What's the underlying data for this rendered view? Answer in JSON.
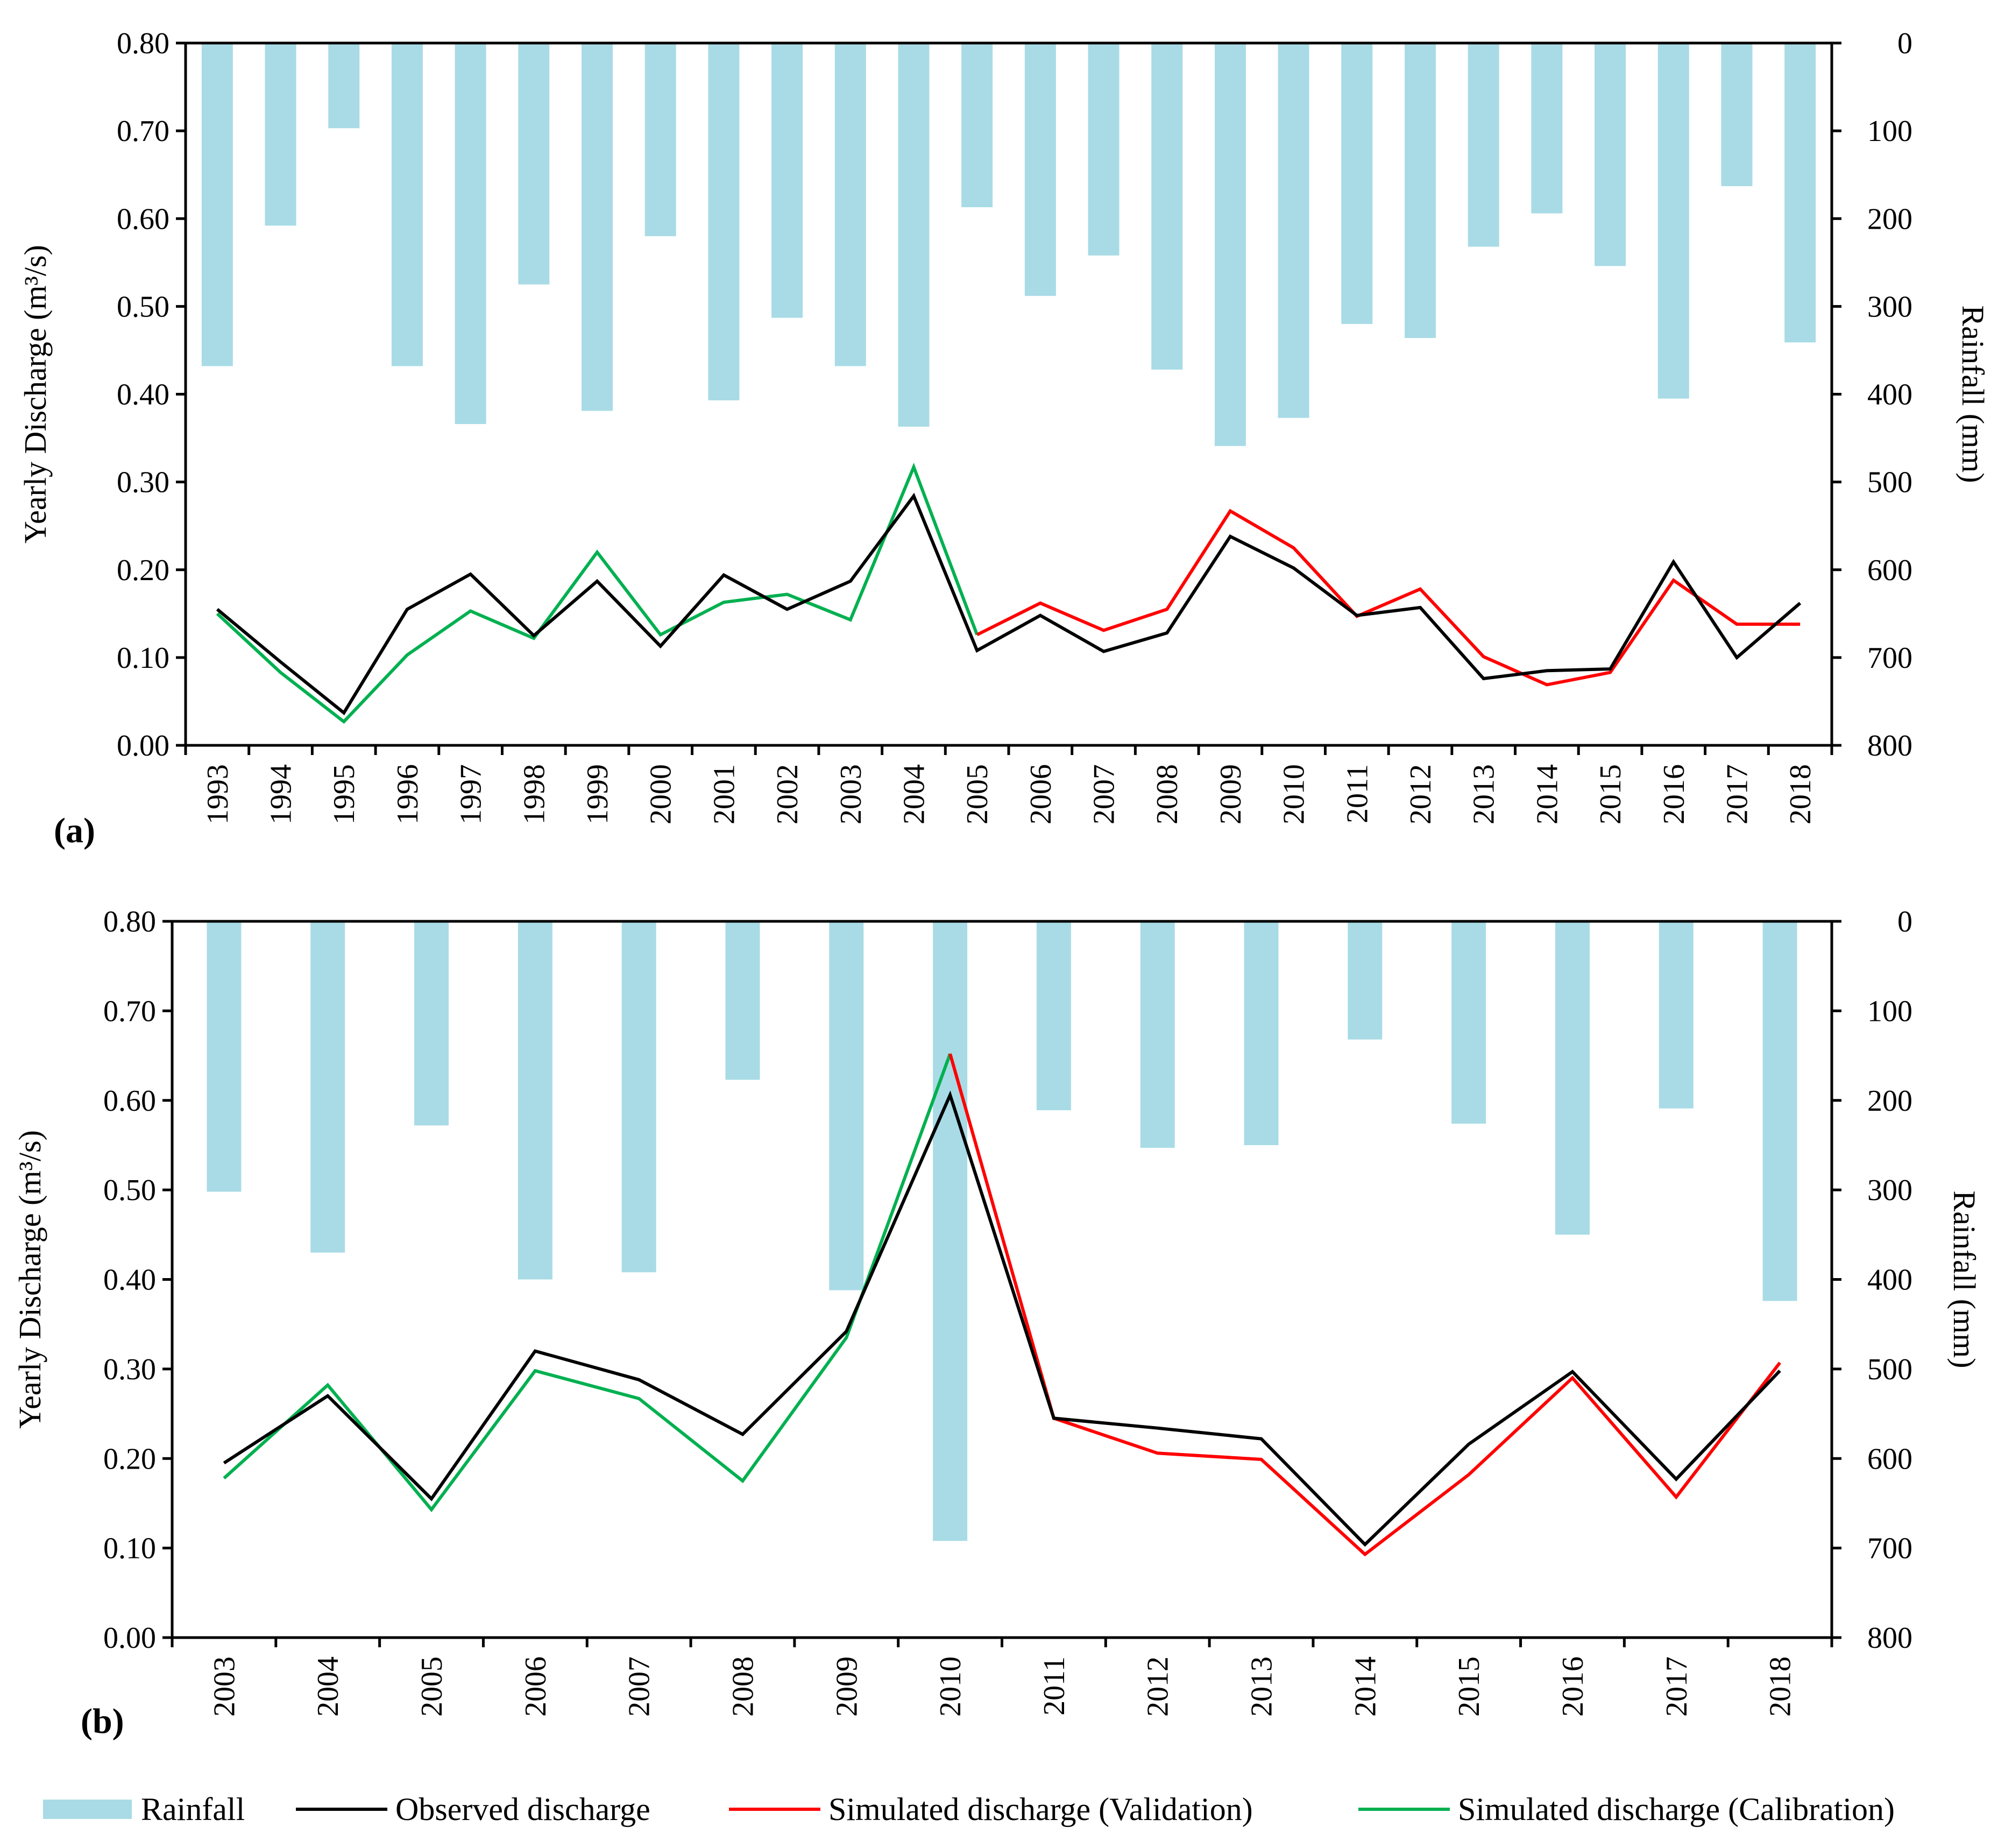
{
  "colors": {
    "rainfall": "#a8dbe6",
    "observed": "#000000",
    "validation": "#ff0000",
    "calibration": "#00b050"
  },
  "legend": {
    "rainfall": "Rainfall",
    "observed": "Observed discharge",
    "validation": "Simulated discharge (Validation)",
    "calibration": "Simulated discharge (Calibration)"
  },
  "chart_data": [
    {
      "type": "bar+line",
      "panel_label": "(a)",
      "ylabel_left": "Yearly Discharge (m³/s)",
      "ylabel_right": "Rainfall (mm)",
      "ylim_left": [
        0,
        0.8
      ],
      "yticks_left": [
        "0.00",
        "0.10",
        "0.20",
        "0.30",
        "0.40",
        "0.50",
        "0.60",
        "0.70",
        "0.80"
      ],
      "ylim_right_inverted": [
        0,
        800
      ],
      "yticks_right": [
        "0",
        "100",
        "200",
        "300",
        "400",
        "500",
        "600",
        "700",
        "800"
      ],
      "categories": [
        "1993",
        "1994",
        "1995",
        "1996",
        "1997",
        "1998",
        "1999",
        "2000",
        "2001",
        "2002",
        "2003",
        "2004",
        "2005",
        "2006",
        "2007",
        "2008",
        "2009",
        "2010",
        "2011",
        "2012",
        "2013",
        "2014",
        "2015",
        "2016",
        "2017",
        "2018"
      ],
      "rainfall": [
        368,
        208,
        97,
        368,
        434,
        275,
        419,
        220,
        407,
        313,
        368,
        437,
        187,
        288,
        242,
        372,
        459,
        427,
        320,
        336,
        232,
        194,
        254,
        405,
        163,
        341
      ],
      "observed": [
        0.155,
        0.095,
        0.037,
        0.155,
        0.195,
        0.125,
        0.187,
        0.113,
        0.194,
        0.155,
        0.187,
        0.284,
        0.108,
        0.148,
        0.107,
        0.128,
        0.238,
        0.202,
        0.148,
        0.157,
        0.076,
        0.085,
        0.087,
        0.209,
        0.1,
        0.162
      ],
      "calibration": [
        0.15,
        0.083,
        0.027,
        0.103,
        0.153,
        0.122,
        0.22,
        0.126,
        0.163,
        0.172,
        0.143,
        0.317,
        0.126
      ],
      "calibration_start": "1993",
      "validation": [
        0.126,
        0.162,
        0.131,
        0.155,
        0.267,
        0.225,
        0.147,
        0.178,
        0.101,
        0.069,
        0.083,
        0.188,
        0.138,
        0.138
      ],
      "validation_start": "2005"
    },
    {
      "type": "bar+line",
      "panel_label": "(b)",
      "ylabel_left": "Yearly Discharge (m³/s)",
      "ylabel_right": "Rainfall (mm)",
      "ylim_left": [
        0,
        0.8
      ],
      "yticks_left": [
        "0.00",
        "0.10",
        "0.20",
        "0.30",
        "0.40",
        "0.50",
        "0.60",
        "0.70",
        "0.80"
      ],
      "ylim_right_inverted": [
        0,
        800
      ],
      "yticks_right": [
        "0",
        "100",
        "200",
        "300",
        "400",
        "500",
        "600",
        "700",
        "800"
      ],
      "categories": [
        "2003",
        "2004",
        "2005",
        "2006",
        "2007",
        "2008",
        "2009",
        "2010",
        "2011",
        "2012",
        "2013",
        "2014",
        "2015",
        "2016",
        "2017",
        "2018"
      ],
      "rainfall": [
        302,
        370,
        228,
        400,
        392,
        177,
        412,
        692,
        211,
        253,
        250,
        132,
        226,
        350,
        209,
        424
      ],
      "observed": [
        0.195,
        0.27,
        0.155,
        0.32,
        0.288,
        0.227,
        0.342,
        0.606,
        0.245,
        0.234,
        0.222,
        0.104,
        0.216,
        0.297,
        0.177,
        0.298
      ],
      "calibration": [
        0.178,
        0.282,
        0.143,
        0.298,
        0.267,
        0.175,
        0.335,
        0.652
      ],
      "calibration_start": "2003",
      "validation": [
        0.652,
        0.245,
        0.206,
        0.199,
        0.093,
        0.182,
        0.29,
        0.157,
        0.307
      ],
      "validation_start": "2010"
    }
  ]
}
